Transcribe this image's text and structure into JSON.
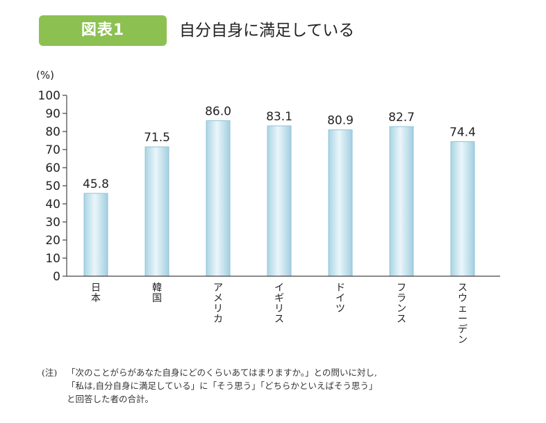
{
  "figure": {
    "badge": "図表1",
    "title": "自分自身に満足している"
  },
  "chart_data": {
    "type": "bar",
    "unit_label": "(%)",
    "categories": [
      "日本",
      "韓国",
      "アメリカ",
      "イギリス",
      "ドイツ",
      "フランス",
      "スウェーデン"
    ],
    "values": [
      45.8,
      71.5,
      86.0,
      83.1,
      80.9,
      82.7,
      74.4
    ],
    "value_labels": [
      "45.8",
      "71.5",
      "86.0",
      "83.1",
      "80.9",
      "82.7",
      "74.4"
    ],
    "ylim": [
      0,
      100
    ],
    "yticks": [
      0,
      10,
      20,
      30,
      40,
      50,
      60,
      70,
      80,
      90,
      100
    ],
    "grid": false,
    "legend": "none",
    "bar_colors": {
      "edge": "#8fc3d6",
      "light": "#e6f4f8",
      "mid": "#bfe0ec"
    }
  },
  "note": {
    "mark": "(注)",
    "lines": [
      "「次のことがらがあなた自身にどのくらいあてはまりますか。」との問いに対し,",
      "「私は,自分自身に満足している」に「そう思う」「どちらかといえばそう思う」",
      "と回答した者の合計。"
    ]
  }
}
